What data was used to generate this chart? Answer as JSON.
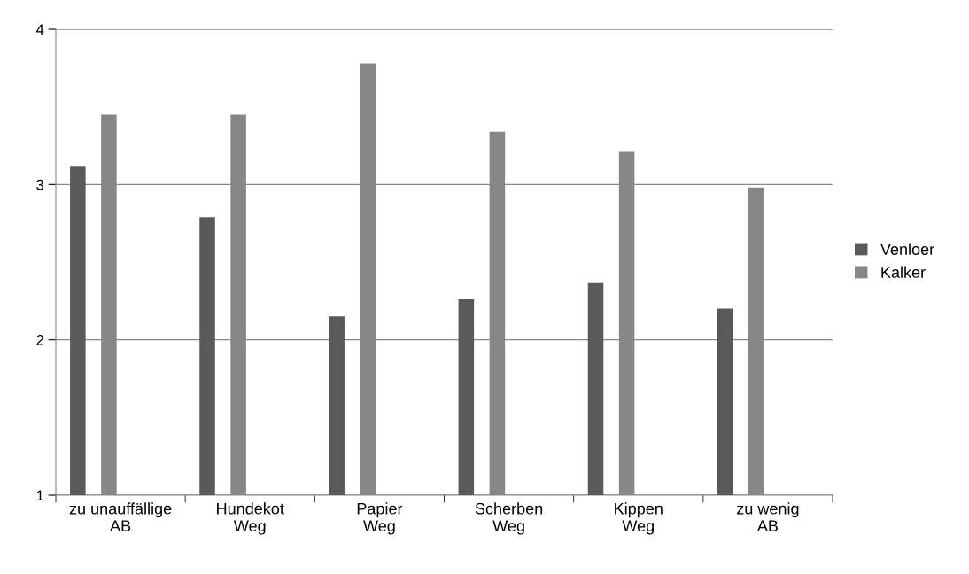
{
  "chart_data": {
    "type": "bar",
    "categories": [
      "zu unauffällige\nAB",
      "Hundekot\nWeg",
      "Papier\nWeg",
      "Scherben\nWeg",
      "Kippen\nWeg",
      "zu wenig\nAB"
    ],
    "series": [
      {
        "name": "Venloer",
        "color": "#595959",
        "values": [
          3.12,
          2.79,
          2.15,
          2.26,
          2.37,
          2.2
        ]
      },
      {
        "name": "Kalker",
        "color": "#878787",
        "values": [
          3.45,
          3.45,
          3.78,
          3.34,
          3.21,
          2.98
        ]
      }
    ],
    "ylim": [
      1,
      4
    ],
    "yticks": [
      1,
      2,
      3,
      4
    ],
    "grid": "y",
    "legend": "right"
  }
}
